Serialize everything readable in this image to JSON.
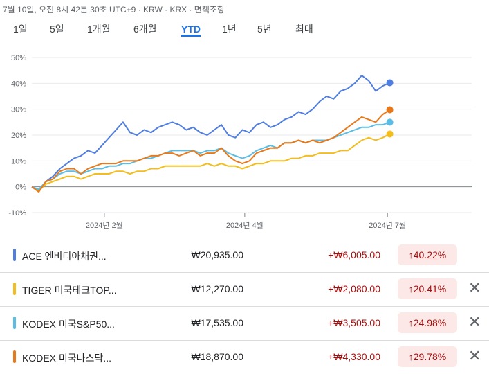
{
  "header": {
    "timestamp": "7월 10일, 오전 8시 42분 30초 UTC+9 · KRW · KRX · 면책조항"
  },
  "tabs": [
    {
      "label": "1일",
      "active": false
    },
    {
      "label": "5일",
      "active": false
    },
    {
      "label": "1개월",
      "active": false
    },
    {
      "label": "6개월",
      "active": false
    },
    {
      "label": "YTD",
      "active": true
    },
    {
      "label": "1년",
      "active": false
    },
    {
      "label": "5년",
      "active": false
    },
    {
      "label": "최대",
      "active": false
    }
  ],
  "chart_data": {
    "type": "line",
    "ylim": [
      -10,
      50
    ],
    "yticks": [
      -10,
      0,
      10,
      20,
      30,
      40,
      50
    ],
    "ytick_labels": [
      "-10%",
      "0%",
      "10%",
      "20%",
      "30%",
      "40%",
      "50%"
    ],
    "xlim": [
      0,
      188
    ],
    "xticks": [
      {
        "x": 31,
        "label": "2024년 2월"
      },
      {
        "x": 91,
        "label": "2024년 4월"
      },
      {
        "x": 152,
        "label": "2024년 7월"
      }
    ],
    "grid": "horizontal",
    "series": [
      {
        "name": "ACE 엔비디아채권...",
        "color": "#4f7ee0",
        "x": [
          0,
          3,
          6,
          9,
          12,
          15,
          18,
          21,
          24,
          27,
          30,
          33,
          36,
          39,
          42,
          45,
          48,
          51,
          54,
          57,
          60,
          63,
          66,
          69,
          72,
          75,
          78,
          81,
          84,
          87,
          90,
          93,
          96,
          99,
          102,
          105,
          108,
          111,
          114,
          117,
          120,
          123,
          126,
          129,
          132,
          135,
          138,
          141,
          144,
          147,
          150,
          153
        ],
        "values": [
          0,
          -1.5,
          2,
          4,
          7,
          9,
          11,
          12,
          14,
          13,
          16,
          19,
          22,
          25,
          21,
          20,
          22,
          21,
          23,
          24,
          25,
          24,
          22,
          23,
          21,
          20,
          22,
          24,
          20,
          19,
          22,
          21,
          24,
          25,
          23,
          24,
          26,
          27,
          29,
          28,
          30,
          33,
          35,
          34,
          37,
          38,
          40,
          43,
          41,
          37,
          39,
          40.22
        ]
      },
      {
        "name": "TIGER 미국테크TOP...",
        "color": "#f2bd1d",
        "x": [
          0,
          3,
          6,
          9,
          12,
          15,
          18,
          21,
          24,
          27,
          30,
          33,
          36,
          39,
          42,
          45,
          48,
          51,
          54,
          57,
          60,
          63,
          66,
          69,
          72,
          75,
          78,
          81,
          84,
          87,
          90,
          93,
          96,
          99,
          102,
          105,
          108,
          111,
          114,
          117,
          120,
          123,
          126,
          129,
          132,
          135,
          138,
          141,
          144,
          147,
          150,
          153
        ],
        "values": [
          0,
          -1.5,
          1,
          2,
          3,
          4,
          4,
          3,
          4,
          5,
          5,
          5,
          6,
          6,
          5,
          6,
          6,
          7,
          7,
          8,
          8,
          8,
          8,
          8,
          8,
          9,
          8,
          9,
          8,
          8,
          7,
          8,
          9,
          9,
          10,
          10,
          10,
          11,
          11,
          12,
          12,
          13,
          13,
          13,
          14,
          14,
          16,
          18,
          19,
          18,
          19,
          20.41
        ]
      },
      {
        "name": "KODEX 미국S&P50...",
        "color": "#5bbde4",
        "x": [
          0,
          3,
          6,
          9,
          12,
          15,
          18,
          21,
          24,
          27,
          30,
          33,
          36,
          39,
          42,
          45,
          48,
          51,
          54,
          57,
          60,
          63,
          66,
          69,
          72,
          75,
          78,
          81,
          84,
          87,
          90,
          93,
          96,
          99,
          102,
          105,
          108,
          111,
          114,
          117,
          120,
          123,
          126,
          129,
          132,
          135,
          138,
          141,
          144,
          147,
          150,
          153
        ],
        "values": [
          0,
          -1,
          2,
          3,
          5,
          6,
          6,
          5,
          6,
          7,
          7,
          8,
          8,
          9,
          9,
          10,
          11,
          11,
          12,
          13,
          14,
          14,
          14,
          14,
          13,
          14,
          14,
          15,
          13,
          12,
          11,
          12,
          14,
          15,
          16,
          15,
          17,
          17,
          18,
          17,
          18,
          18,
          18,
          19,
          20,
          21,
          22,
          23,
          23,
          24,
          24,
          24.98
        ]
      },
      {
        "name": "KODEX 미국나스닥...",
        "color": "#e8791b",
        "x": [
          0,
          3,
          6,
          9,
          12,
          15,
          18,
          21,
          24,
          27,
          30,
          33,
          36,
          39,
          42,
          45,
          48,
          51,
          54,
          57,
          60,
          63,
          66,
          69,
          72,
          75,
          78,
          81,
          84,
          87,
          90,
          93,
          96,
          99,
          102,
          105,
          108,
          111,
          114,
          117,
          120,
          123,
          126,
          129,
          132,
          135,
          138,
          141,
          144,
          147,
          150,
          153
        ],
        "values": [
          0,
          -2,
          2,
          3,
          6,
          7,
          7,
          5,
          7,
          8,
          9,
          9,
          9,
          10,
          10,
          10,
          11,
          12,
          12,
          13,
          13,
          12,
          13,
          14,
          12,
          13,
          13,
          15,
          12,
          10,
          9,
          10,
          13,
          14,
          15,
          15,
          17,
          17,
          18,
          17,
          18,
          17,
          18,
          19,
          21,
          23,
          25,
          27,
          26,
          25,
          28,
          29.78
        ]
      }
    ]
  },
  "holdings": [
    {
      "color": "#4f7ee0",
      "name": "ACE 엔비디아채권...",
      "price": "₩20,935.00",
      "change": "+₩6,005.00",
      "pct": "↑40.22%",
      "close": ""
    },
    {
      "color": "#f2bd1d",
      "name": "TIGER 미국테크TOP...",
      "price": "₩12,270.00",
      "change": "+₩2,080.00",
      "pct": "↑20.41%",
      "close": "✕"
    },
    {
      "color": "#5bbde4",
      "name": "KODEX 미국S&P50...",
      "price": "₩17,535.00",
      "change": "+₩3,505.00",
      "pct": "↑24.98%",
      "close": "✕"
    },
    {
      "color": "#e8791b",
      "name": "KODEX 미국나스닥...",
      "price": "₩18,870.00",
      "change": "+₩4,330.00",
      "pct": "↑29.78%",
      "close": "✕"
    }
  ]
}
